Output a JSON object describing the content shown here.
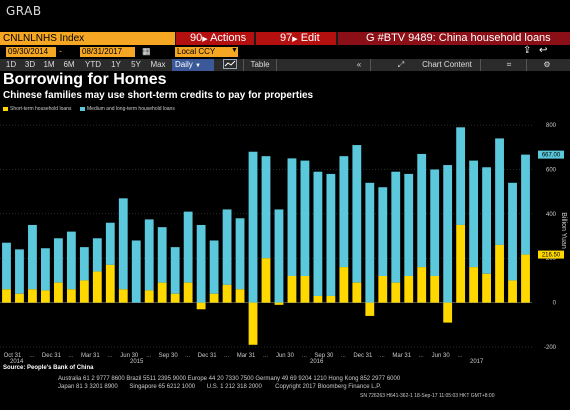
{
  "app": {
    "label": "GRAB"
  },
  "command_bar": {
    "ticker": "CNLNLNHS Index",
    "actions": {
      "number": "90",
      "label": "Actions"
    },
    "edit": {
      "number": "97",
      "label": "Edit"
    },
    "btv": "G #BTV 9489: China household loans"
  },
  "date_range": {
    "start": "09/30/2014",
    "end": "08/31/2017",
    "currency": "Local CCY"
  },
  "toolbar": {
    "periods": [
      "1D",
      "3D",
      "1M",
      "6M",
      "YTD",
      "1Y",
      "5Y",
      "Max"
    ],
    "frequency": "Daily",
    "view": "Table",
    "chart_content": "Chart Content"
  },
  "icons": {
    "chart": "line-chart-icon",
    "back": "back-arrow-icon",
    "settings": "gear-icon",
    "share": "share-icon"
  },
  "headline": {
    "title": "Borrowing for Homes",
    "subtitle": "Chinese families may use short-term credits to pay for properties"
  },
  "source": "Source: People's Bank of China",
  "footer": {
    "line1": "Australia 61 2 9777 8600 Brazil 5511 2395 9000 Europe 44 20 7330 7500 Germany 49 69 9204 1210 Hong Kong 852 2977 6000",
    "line2": "Japan 81 3 3201 8900       Singapore 65 6212 1000       U.S. 1 212 318 2000        Copyright 2017 Bloomberg Finance L.P.",
    "line3": "SN 726263 H641-362-1 18-Sep-17 11:05:03 HKT  GMT+8:00"
  },
  "colors": {
    "short_term": "#ffd800",
    "medium_long": "#5bc8dc",
    "accent_orange": "#f5a623",
    "red": "#b51010"
  },
  "chart_data": {
    "type": "bar",
    "stacked": true,
    "x_tick_labels": [
      "Oct 31",
      "Dec 31",
      "Mar 31",
      "Jun 30",
      "Sep 30",
      "Dec 31",
      "Mar 31",
      "Jun 30",
      "Sep 30",
      "Dec 31",
      "Mar 31",
      "Jun 30"
    ],
    "year_labels": [
      "2014",
      "2015",
      "2016",
      "2017"
    ],
    "ylabel": "Billion Yuan",
    "ylim": [
      -200,
      850
    ],
    "y_ticks": [
      -200,
      0,
      200,
      400,
      600,
      800
    ],
    "grid": true,
    "legend_position": "top-left",
    "last_values": {
      "medium_long": "667.00",
      "short_term": "216.50"
    },
    "series": [
      {
        "name": "Short-term household loans",
        "values": [
          60,
          40,
          60,
          55,
          90,
          60,
          100,
          140,
          170,
          60,
          0,
          55,
          90,
          40,
          90,
          -30,
          40,
          80,
          60,
          -190,
          200,
          -10,
          120,
          120,
          30,
          30,
          160,
          90,
          -60,
          120,
          90,
          120,
          160,
          120,
          -90,
          350,
          160,
          130,
          260,
          100,
          216.5
        ]
      },
      {
        "name": "Medium and long-term household loans",
        "values": [
          210,
          200,
          290,
          190,
          200,
          260,
          150,
          150,
          190,
          410,
          280,
          320,
          250,
          210,
          320,
          350,
          240,
          340,
          320,
          680,
          460,
          420,
          530,
          520,
          560,
          550,
          500,
          620,
          540,
          400,
          500,
          460,
          510,
          480,
          620,
          440,
          480,
          480,
          480,
          440,
          450.5
        ]
      }
    ]
  }
}
